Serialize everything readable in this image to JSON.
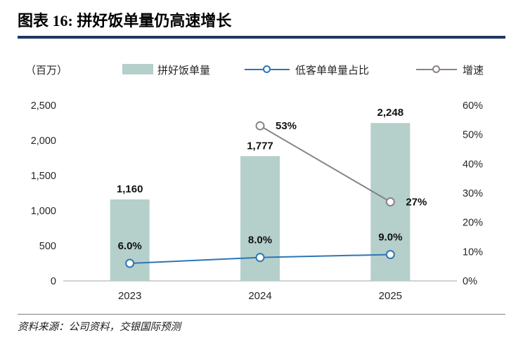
{
  "header": {
    "title": "图表 16: 拼好饭单量仍高速增长"
  },
  "footer": {
    "source": "资料来源：公司资料，交银国际预测"
  },
  "chart_data": {
    "type": "combo",
    "title": "图表 16: 拼好饭单量仍高速增长",
    "unit_label": "（百万）",
    "categories": [
      "2023",
      "2024",
      "2025"
    ],
    "bar_series": {
      "name": "拼好饭单量",
      "color": "#b5cfcb",
      "axis": "left",
      "values": [
        1160,
        1777,
        2248
      ],
      "labels": [
        "1,160",
        "1,777",
        "2,248"
      ]
    },
    "line_series": [
      {
        "name": "低客单单量占比",
        "color": "#2e75b6",
        "axis": "right",
        "values": [
          6.0,
          8.0,
          9.0
        ],
        "labels": [
          "6.0%",
          "8.0%",
          "9.0%"
        ],
        "label_position": "above"
      },
      {
        "name": "增速",
        "color": "#8b8289",
        "axis": "right",
        "values": [
          null,
          53,
          27
        ],
        "labels": [
          null,
          "53%",
          "27%"
        ],
        "label_position": "right"
      }
    ],
    "left_axis": {
      "min": 0,
      "max": 2500,
      "step": 500,
      "tick_labels": [
        "0",
        "500",
        "1,000",
        "1,500",
        "2,000",
        "2,500"
      ]
    },
    "right_axis": {
      "min": 0,
      "max": 60,
      "step": 10,
      "tick_labels": [
        "0%",
        "10%",
        "20%",
        "30%",
        "40%",
        "50%",
        "60%"
      ]
    },
    "legend_position": "top",
    "grid": false
  }
}
